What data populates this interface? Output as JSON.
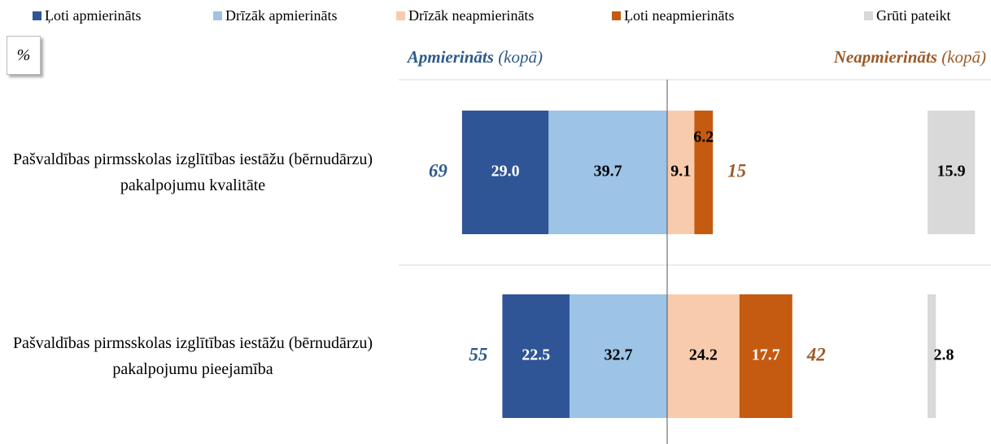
{
  "chart_data": {
    "type": "diverging_bar",
    "unit": "%",
    "left_header": [
      "Apmierināts",
      "(kopā)"
    ],
    "right_header": [
      "Neapmierināts",
      "(kopā)"
    ],
    "categories": [
      "Pašvaldības pirmsskolas izglītības iestāžu (bērnudārzu) pakalpojumu kvalitāte",
      "Pašvaldības pirmsskolas izglītības iestāžu (bērnudārzu) pakalpojumu pieejamība"
    ],
    "xlim": [
      -70,
      105
    ],
    "series": [
      {
        "name": "Ļoti apmierināts",
        "color": "#2f5597",
        "side": "left",
        "values": [
          29.0,
          22.5
        ],
        "value_labels": [
          "29.0",
          "22.5"
        ]
      },
      {
        "name": "Drīzāk apmierināts",
        "color": "#9dc3e6",
        "side": "left",
        "values": [
          39.7,
          32.7
        ],
        "value_labels": [
          "39.7",
          "32.7"
        ]
      },
      {
        "name": "Drīzāk neapmierināts",
        "color": "#f8cbad",
        "side": "right",
        "values": [
          9.1,
          24.2
        ],
        "value_labels": [
          "9.1",
          "24.2"
        ]
      },
      {
        "name": "Ļoti neapmierināts",
        "color": "#c55a11",
        "side": "right",
        "values": [
          6.2,
          17.7
        ],
        "value_labels": [
          "6.2",
          "17.7"
        ]
      },
      {
        "name": "Grūti pateikt",
        "color": "#d9d9d9",
        "side": "separate",
        "values": [
          15.9,
          2.8
        ],
        "value_labels": [
          "15.9",
          "2.8"
        ]
      }
    ],
    "totals_left": [
      69,
      55
    ],
    "totals_right": [
      15,
      42
    ],
    "left_total_color": "#2e5a8a",
    "right_total_color": "#9c5a2a"
  }
}
